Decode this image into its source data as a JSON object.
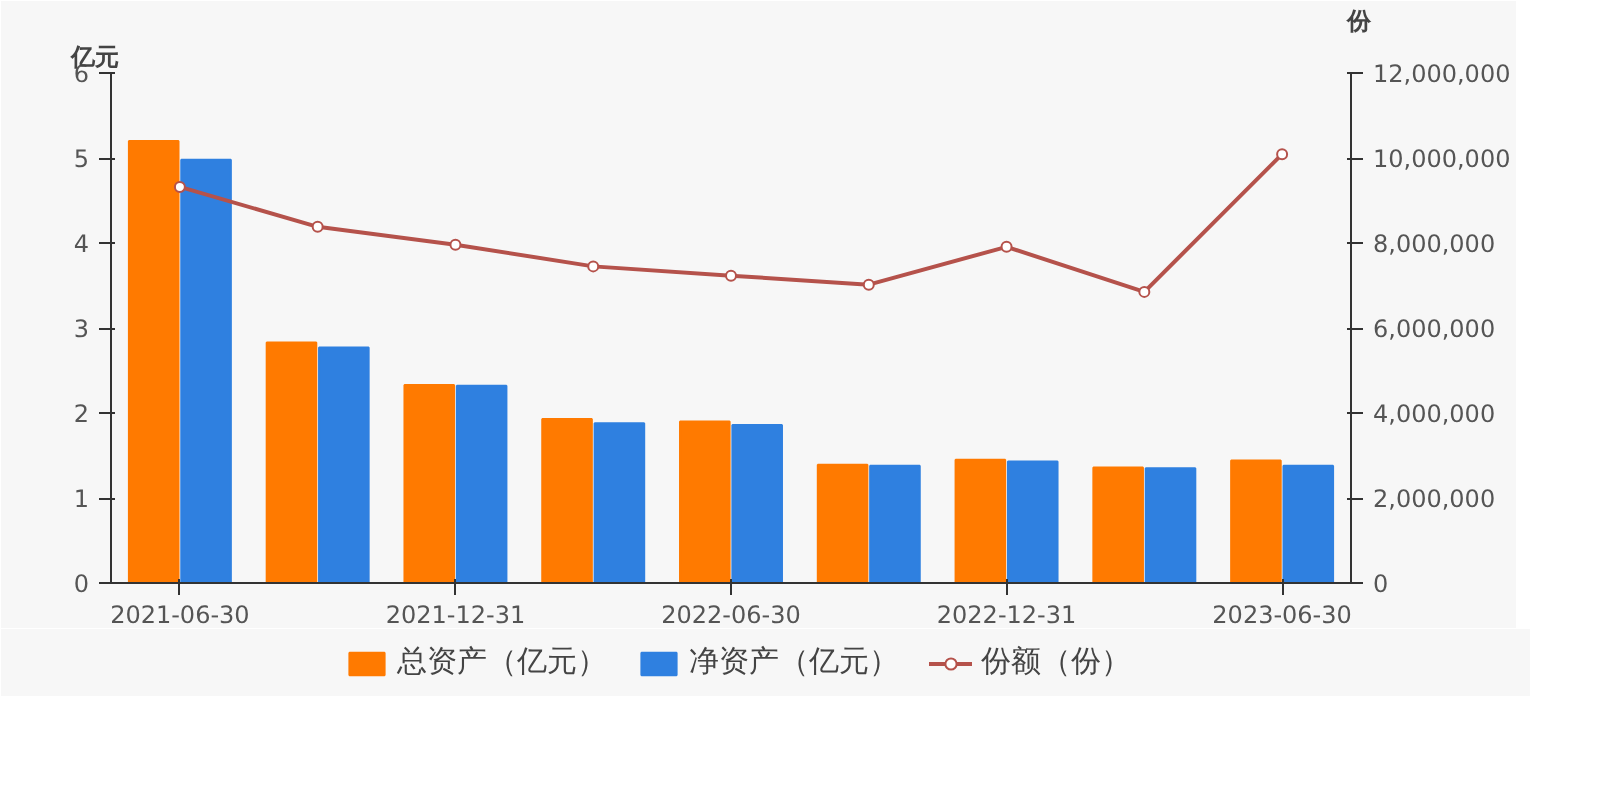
{
  "chart_data": {
    "type": "bar",
    "categories": [
      "2021-06-30",
      null,
      "2021-12-31",
      null,
      "2022-06-30",
      null,
      "2022-12-31",
      null,
      "2023-06-30"
    ],
    "ylabel": "亿元",
    "y2label": "份",
    "series": [
      {
        "name": "总资产（亿元）",
        "color": "#ff7a00",
        "values": [
          5.2,
          2.83,
          2.33,
          1.93,
          1.9,
          1.39,
          1.45,
          1.36,
          1.44
        ]
      },
      {
        "name": "净资产（亿元）",
        "color": "#2f80e0",
        "values": [
          4.98,
          2.77,
          2.32,
          1.88,
          1.86,
          1.38,
          1.43,
          1.35,
          1.38
        ]
      },
      {
        "name": "份额（份）",
        "type": "line",
        "axis": "y2",
        "color": "#b5524b",
        "marker": "circle",
        "values": [
          9320000,
          8380000,
          7960000,
          7450000,
          7230000,
          7020000,
          7910000,
          6850000,
          10090000
        ]
      }
    ],
    "ylim": [
      0,
      6
    ],
    "yticks": [
      0,
      1,
      2,
      3,
      4,
      5,
      6
    ],
    "y2lim": [
      0,
      12000000
    ],
    "y2ticks": [
      {
        "value": 0,
        "label": "0"
      },
      {
        "value": 2000000,
        "label": "2,000,000"
      },
      {
        "value": 4000000,
        "label": "4,000,000"
      },
      {
        "value": 6000000,
        "label": "6,000,000"
      },
      {
        "value": 8000000,
        "label": "8,000,000"
      },
      {
        "value": 10000000,
        "label": "10,000,000"
      },
      {
        "value": 12000000,
        "label": "12,000,000"
      }
    ],
    "grid": false,
    "legend": "bottom"
  }
}
